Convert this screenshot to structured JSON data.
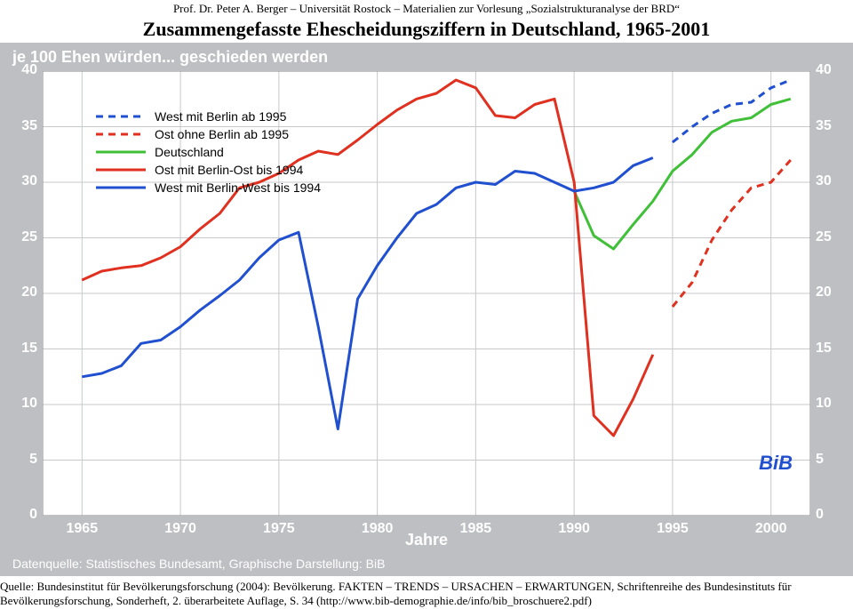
{
  "header": {
    "line1": "Prof. Dr. Peter A. Berger – Universität Rostock – Materialien zur Vorlesung „Sozialstrukturanalyse der BRD“",
    "line2": "Zusammengefasste Ehescheidungsziffern in Deutschland, 1965-2001"
  },
  "chart": {
    "type": "line",
    "title": "je 100 Ehen würden... geschieden werden",
    "background_outer": "#bebfc2",
    "background_plot": "#ffffff",
    "grid_color": "#c8c9cc",
    "label_color": "#ffffff",
    "bib_color": "#2050d0",
    "xlim": [
      1963,
      2002
    ],
    "ylim": [
      0,
      40
    ],
    "ytick_step": 5,
    "xticks": [
      1965,
      1970,
      1975,
      1980,
      1985,
      1990,
      1995,
      2000
    ],
    "axis_title_x": "Jahre",
    "bib_label": "BiB",
    "data_source": "Datenquelle: Statistisches Bundesamt, Graphische Darstellung: BiB",
    "line_width": 3,
    "dash_pattern": "8,6",
    "legend": [
      {
        "label": "West mit Berlin ab 1995",
        "color": "#2050d0",
        "style": "dashed"
      },
      {
        "label": "Ost ohne Berlin ab 1995",
        "color": "#e03020",
        "style": "dashed"
      },
      {
        "label": "Deutschland",
        "color": "#40c038",
        "style": "solid"
      },
      {
        "label": "Ost mit Berlin-Ost bis 1994",
        "color": "#e03020",
        "style": "solid"
      },
      {
        "label": "West mit Berlin-West bis 1994",
        "color": "#2050d0",
        "style": "solid"
      }
    ],
    "series": {
      "west_dashed": {
        "color": "#2050d0",
        "style": "dashed",
        "points": [
          [
            1995,
            33.6
          ],
          [
            1996,
            35.0
          ],
          [
            1997,
            36.2
          ],
          [
            1998,
            37.0
          ],
          [
            1999,
            37.2
          ],
          [
            2000,
            38.5
          ],
          [
            2001,
            39.2
          ]
        ]
      },
      "ost_dashed": {
        "color": "#e03020",
        "style": "dashed",
        "points": [
          [
            1995,
            18.8
          ],
          [
            1996,
            21.0
          ],
          [
            1997,
            24.8
          ],
          [
            1998,
            27.5
          ],
          [
            1999,
            29.5
          ],
          [
            2000,
            30.0
          ],
          [
            2001,
            32.0
          ]
        ]
      },
      "deutschland": {
        "color": "#40c038",
        "style": "solid",
        "points": [
          [
            1990,
            29.2
          ],
          [
            1991,
            25.2
          ],
          [
            1992,
            24.0
          ],
          [
            1993,
            26.2
          ],
          [
            1994,
            28.3
          ],
          [
            1995,
            31.0
          ],
          [
            1996,
            32.5
          ],
          [
            1997,
            34.5
          ],
          [
            1998,
            35.5
          ],
          [
            1999,
            35.8
          ],
          [
            2000,
            37.0
          ],
          [
            2001,
            37.5
          ]
        ]
      },
      "ost_solid": {
        "color": "#e03020",
        "style": "solid",
        "points": [
          [
            1965,
            21.2
          ],
          [
            1966,
            22.0
          ],
          [
            1967,
            22.3
          ],
          [
            1968,
            22.5
          ],
          [
            1969,
            23.2
          ],
          [
            1970,
            24.2
          ],
          [
            1971,
            25.8
          ],
          [
            1972,
            27.2
          ],
          [
            1973,
            29.5
          ],
          [
            1974,
            30.0
          ],
          [
            1975,
            30.8
          ],
          [
            1976,
            32.0
          ],
          [
            1977,
            32.8
          ],
          [
            1978,
            32.5
          ],
          [
            1979,
            33.8
          ],
          [
            1980,
            35.2
          ],
          [
            1981,
            36.5
          ],
          [
            1982,
            37.5
          ],
          [
            1983,
            38.0
          ],
          [
            1984,
            39.2
          ],
          [
            1985,
            38.5
          ],
          [
            1986,
            36.0
          ],
          [
            1987,
            35.8
          ],
          [
            1988,
            37.0
          ],
          [
            1989,
            37.5
          ],
          [
            1990,
            30.0
          ],
          [
            1991,
            9.0
          ],
          [
            1992,
            7.2
          ],
          [
            1993,
            10.5
          ],
          [
            1994,
            14.5
          ]
        ]
      },
      "west_solid": {
        "color": "#2050d0",
        "style": "solid",
        "points": [
          [
            1965,
            12.5
          ],
          [
            1966,
            12.8
          ],
          [
            1967,
            13.5
          ],
          [
            1968,
            15.5
          ],
          [
            1969,
            15.8
          ],
          [
            1970,
            17.0
          ],
          [
            1971,
            18.5
          ],
          [
            1972,
            19.8
          ],
          [
            1973,
            21.2
          ],
          [
            1974,
            23.2
          ],
          [
            1975,
            24.8
          ],
          [
            1976,
            25.5
          ],
          [
            1977,
            17.0
          ],
          [
            1978,
            7.8
          ],
          [
            1979,
            19.5
          ],
          [
            1980,
            22.5
          ],
          [
            1981,
            25.0
          ],
          [
            1982,
            27.2
          ],
          [
            1983,
            28.0
          ],
          [
            1984,
            29.5
          ],
          [
            1985,
            30.0
          ],
          [
            1986,
            29.8
          ],
          [
            1987,
            31.0
          ],
          [
            1988,
            30.8
          ],
          [
            1989,
            30.0
          ],
          [
            1990,
            29.2
          ],
          [
            1991,
            29.5
          ],
          [
            1992,
            30.0
          ],
          [
            1993,
            31.5
          ],
          [
            1994,
            32.2
          ]
        ]
      }
    }
  },
  "footer": {
    "text": "Quelle: Bundesinstitut für Bevölkerungsforschung (2004): Bevölkerung. FAKTEN – TRENDS – URSACHEN – ERWARTUNGEN, Schriftenreihe des Bundesinstituts für Bevölkerungsforschung, Sonderheft, 2. überarbeitete Auflage, S. 34 (http://www.bib-demographie.de/info/bib_broschuere2.pdf)"
  }
}
